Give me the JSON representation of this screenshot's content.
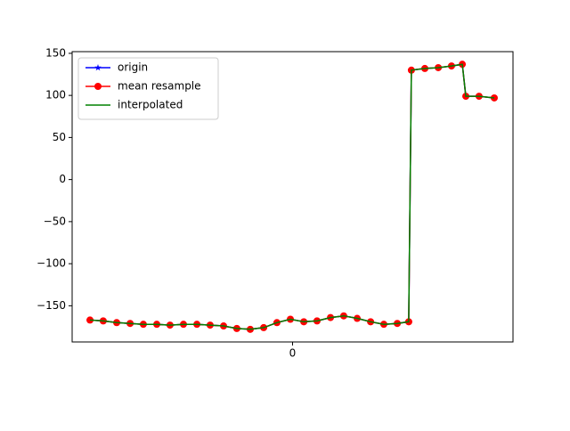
{
  "chart_data": {
    "type": "line",
    "x": [
      -0.919,
      -0.859,
      -0.798,
      -0.737,
      -0.677,
      -0.616,
      -0.556,
      -0.495,
      -0.434,
      -0.374,
      -0.313,
      -0.253,
      -0.192,
      -0.131,
      -0.071,
      -0.01,
      0.051,
      0.111,
      0.172,
      0.232,
      0.293,
      0.354,
      0.414,
      0.475,
      0.527,
      0.539,
      0.6,
      0.661,
      0.721,
      0.77,
      0.786,
      0.846,
      0.915
    ],
    "series": [
      {
        "name": "origin",
        "color": "#0000ff",
        "marker": "star",
        "values": [
          -167,
          -168,
          -170,
          -171,
          -172,
          -172,
          -173,
          -172,
          -172,
          -173,
          -174,
          -177,
          -178,
          -176,
          -170,
          -166,
          -169,
          -168,
          -164,
          -162,
          -165,
          -169,
          -172,
          -171,
          -169,
          130,
          132,
          133,
          135,
          137,
          99,
          99,
          97
        ]
      },
      {
        "name": "mean resample",
        "color": "#ff0000",
        "marker": "circle",
        "values": [
          -167,
          -168,
          -170,
          -171,
          -172,
          -172,
          -173,
          -172,
          -172,
          -173,
          -174,
          -177,
          -178,
          -176,
          -170,
          -166,
          -169,
          -168,
          -164,
          -162,
          -165,
          -169,
          -172,
          -171,
          -169,
          130,
          132,
          133,
          135,
          137,
          99,
          99,
          97
        ]
      },
      {
        "name": "interpolated",
        "color": "#008000",
        "marker": "none",
        "values": [
          -167,
          -168,
          -170,
          -171,
          -172,
          -172,
          -173,
          -172,
          -172,
          -173,
          -174,
          -177,
          -178,
          -176,
          -170,
          -166,
          -169,
          -168,
          -164,
          -162,
          -165,
          -169,
          -172,
          -171,
          -169,
          130,
          132,
          133,
          135,
          137,
          99,
          99,
          97
        ]
      }
    ],
    "xlim": [
      -1,
      1
    ],
    "xticks": [
      0
    ],
    "ylim": [
      -193,
      152
    ],
    "yticks": [
      150,
      100,
      50,
      0,
      {
        "value": -50,
        "label": "−50"
      },
      {
        "value": -100,
        "label": "−100"
      },
      {
        "value": -150,
        "label": "−150"
      }
    ],
    "legend": "upper left"
  }
}
